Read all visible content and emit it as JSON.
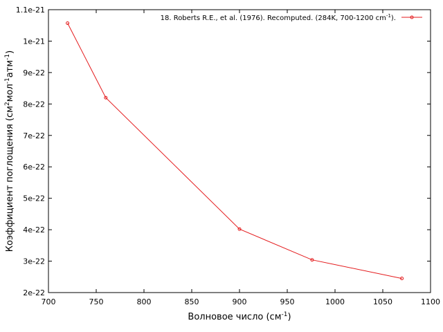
{
  "chart_data": {
    "type": "line",
    "xlabel_main": "Волновое число (см",
    "xlabel_sup": "-1",
    "xlabel_tail": ")",
    "ylabel_p1": "Коэффициент поглощения (см",
    "ylabel_sup1": "2",
    "ylabel_p2": "мол",
    "ylabel_sup2": "-1",
    "ylabel_p3": "атм",
    "ylabel_sup3": "-1",
    "ylabel_p4": ")",
    "xlim": [
      700,
      1100
    ],
    "ylim": [
      2e-22,
      1.1e-21
    ],
    "x_ticks": [
      700,
      750,
      800,
      850,
      900,
      950,
      1000,
      1050,
      1100
    ],
    "x_tick_labels": [
      "700",
      "750",
      "800",
      "850",
      "900",
      "950",
      "1000",
      "1050",
      "1100"
    ],
    "y_ticks": [
      2e-22,
      3e-22,
      4e-22,
      5e-22,
      6e-22,
      7e-22,
      8e-22,
      9e-22,
      1e-21,
      1.1e-21
    ],
    "y_tick_labels": [
      "2e-22",
      "3e-22",
      "4e-22",
      "5e-22",
      "6e-22",
      "7e-22",
      "8e-22",
      "9e-22",
      "1e-21",
      "1.1e-21"
    ],
    "grid": false,
    "legend_position": "top-right",
    "series": [
      {
        "name": "18. Roberts R.E., et al. (1976). Recomputed.  (284K, 700-1200 cm",
        "name_sup": "-1",
        "name_tail": ").",
        "color": "#e41a1c",
        "x": [
          720,
          760,
          900,
          976,
          1070
        ],
        "y": [
          1.057e-21,
          8.2e-22,
          4.02e-22,
          3.04e-22,
          2.45e-22
        ]
      }
    ]
  }
}
